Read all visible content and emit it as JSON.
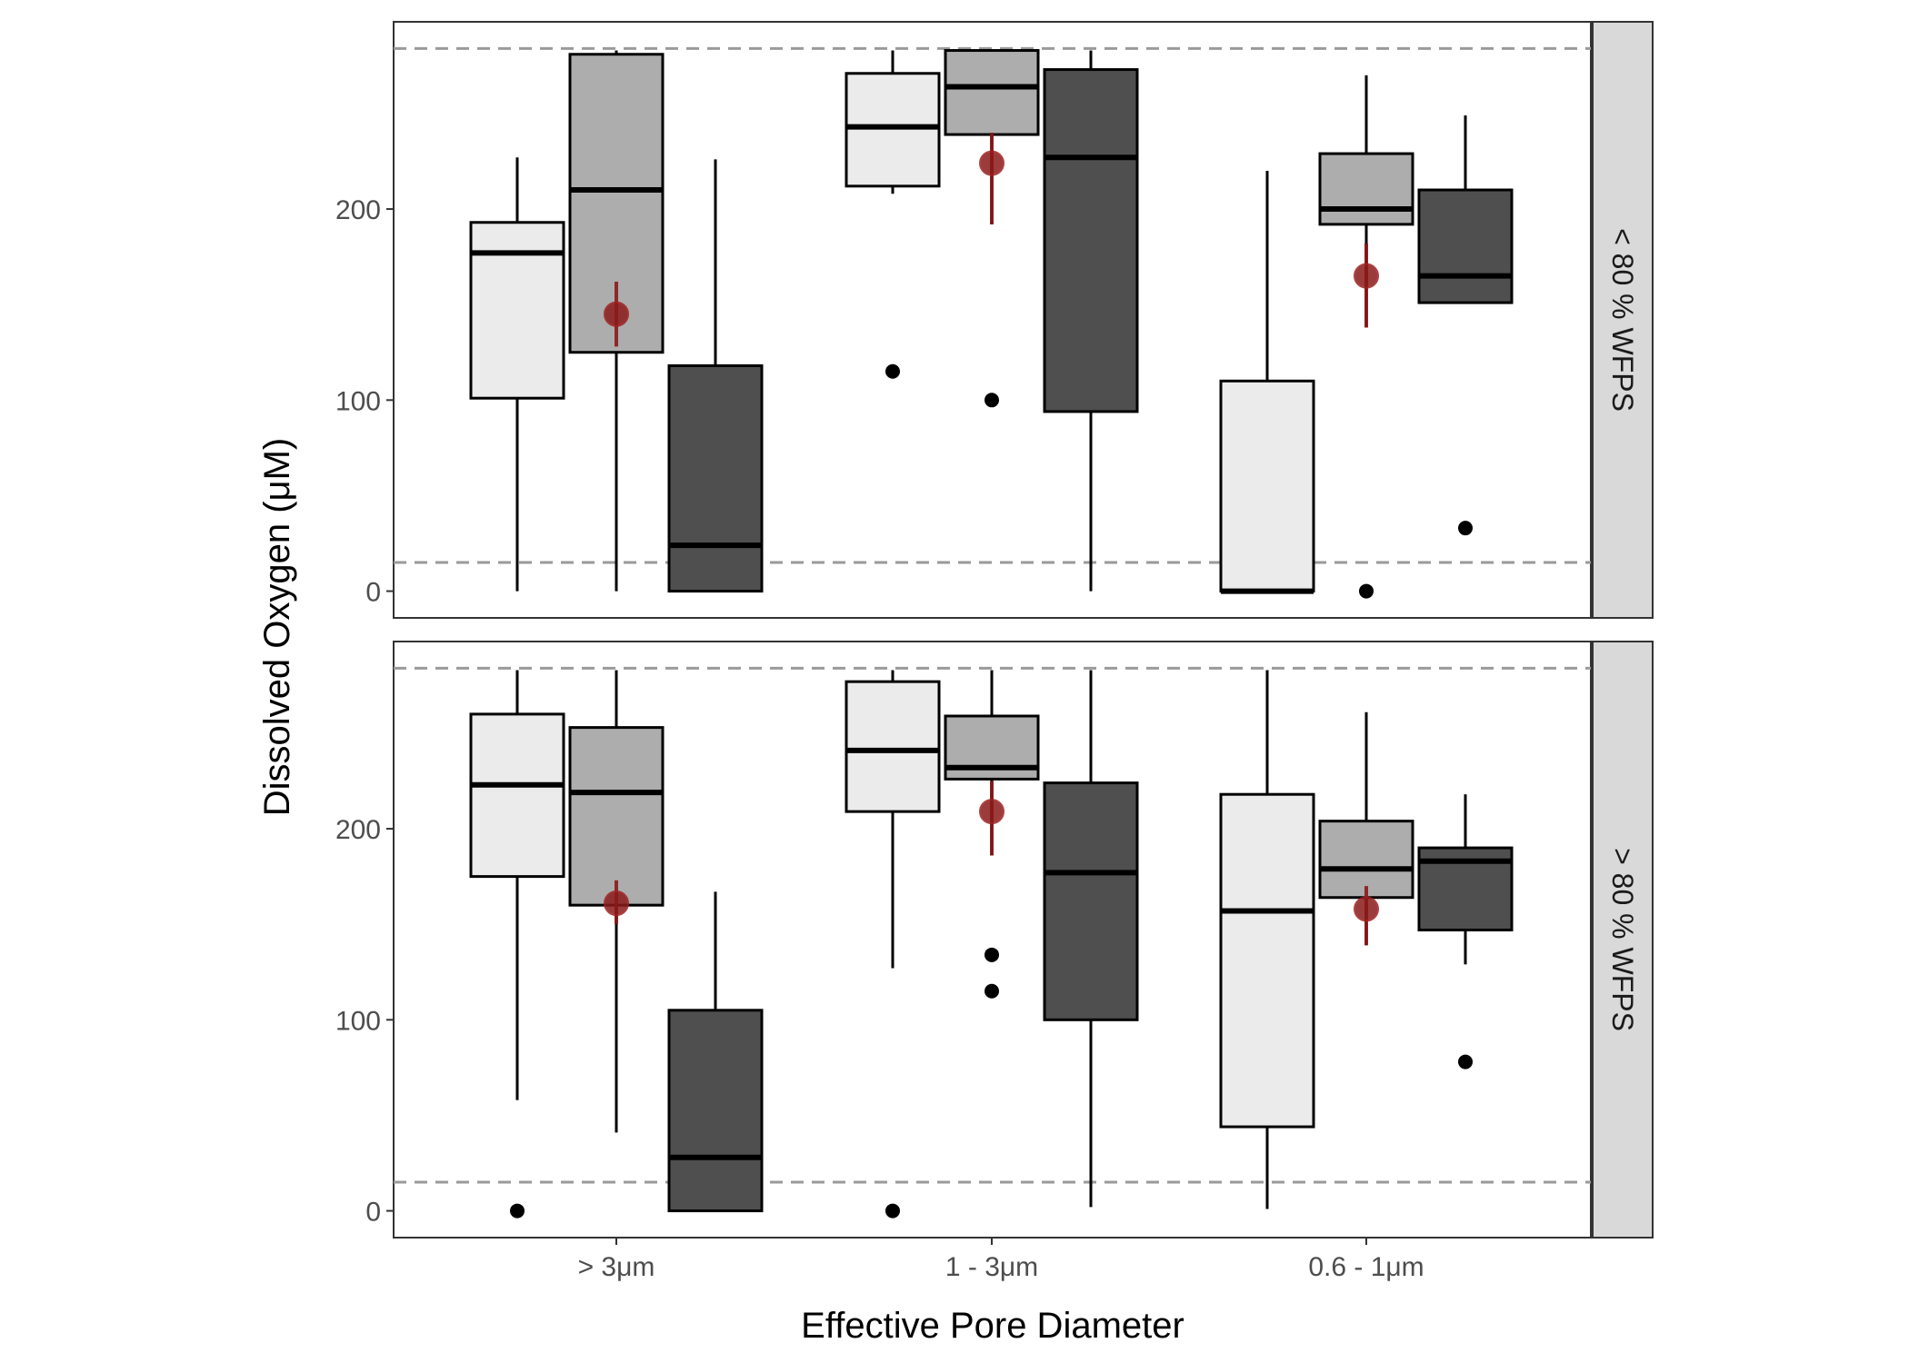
{
  "chart_data": {
    "type": "boxplot",
    "xlabel": "Effective Pore Diameter",
    "ylabel": "Dissolved Oxygen (μM)",
    "categories": [
      ">  3μm",
      "1 - 3μm",
      "0.6 - 1μm"
    ],
    "category_labels": [
      "> 3μm",
      "1 - 3μm",
      "0.6 - 1μm"
    ],
    "ylim": [
      -14,
      298
    ],
    "yticks": [
      0,
      100,
      200
    ],
    "reference_lines": [
      15,
      284
    ],
    "fill_colors": [
      "#ebebeb",
      "#adadad",
      "#4f4f4f"
    ],
    "mean_color": "#8b1a1a",
    "panels": [
      {
        "strip_label": "< 80 % WFPS",
        "groups": [
          {
            "category": "> 3μm",
            "boxes": [
              {
                "whisker_low": 0,
                "q1": 101,
                "median": 177,
                "q3": 193,
                "whisker_high": 227,
                "outliers": []
              },
              {
                "whisker_low": 0,
                "q1": 125,
                "median": 210,
                "q3": 281,
                "whisker_high": 283,
                "outliers": []
              },
              {
                "whisker_low": 0,
                "q1": 0,
                "median": 24,
                "q3": 118,
                "whisker_high": 226,
                "outliers": []
              }
            ],
            "mean": {
              "value": 145,
              "low": 128,
              "high": 162
            }
          },
          {
            "category": "1 - 3μm",
            "boxes": [
              {
                "whisker_low": 208,
                "q1": 212,
                "median": 243,
                "q3": 271,
                "whisker_high": 283,
                "outliers": [
                  115
                ]
              },
              {
                "whisker_low": 192,
                "q1": 239,
                "median": 264,
                "q3": 283,
                "whisker_high": 283,
                "outliers": [
                  100
                ]
              },
              {
                "whisker_low": 0,
                "q1": 94,
                "median": 227,
                "q3": 273,
                "whisker_high": 283,
                "outliers": []
              }
            ],
            "mean": {
              "value": 224,
              "low": 192,
              "high": 240
            }
          },
          {
            "category": "0.6 - 1μm",
            "boxes": [
              {
                "whisker_low": 0,
                "q1": 0,
                "median": 0,
                "q3": 110,
                "whisker_high": 220,
                "outliers": []
              },
              {
                "whisker_low": 138,
                "q1": 192,
                "median": 200,
                "q3": 229,
                "whisker_high": 270,
                "outliers": [
                  0
                ]
              },
              {
                "whisker_low": 151,
                "q1": 151,
                "median": 165,
                "q3": 210,
                "whisker_high": 249,
                "outliers": [
                  33
                ]
              }
            ],
            "mean": {
              "value": 165,
              "low": 138,
              "high": 182
            }
          }
        ]
      },
      {
        "strip_label": "> 80 % WFPS",
        "groups": [
          {
            "category": "> 3μm",
            "boxes": [
              {
                "whisker_low": 58,
                "q1": 175,
                "median": 223,
                "q3": 260,
                "whisker_high": 283,
                "outliers": [
                  0
                ]
              },
              {
                "whisker_low": 41,
                "q1": 160,
                "median": 219,
                "q3": 253,
                "whisker_high": 283,
                "outliers": []
              },
              {
                "whisker_low": 0,
                "q1": 0,
                "median": 28,
                "q3": 105,
                "whisker_high": 167,
                "outliers": []
              }
            ],
            "mean": {
              "value": 161,
              "low": 150,
              "high": 173
            }
          },
          {
            "category": "1 - 3μm",
            "boxes": [
              {
                "whisker_low": 127,
                "q1": 209,
                "median": 241,
                "q3": 277,
                "whisker_high": 283,
                "outliers": [
                  0
                ]
              },
              {
                "whisker_low": 186,
                "q1": 226,
                "median": 232,
                "q3": 259,
                "whisker_high": 283,
                "outliers": [
                  134,
                  115
                ]
              },
              {
                "whisker_low": 2,
                "q1": 100,
                "median": 177,
                "q3": 224,
                "whisker_high": 283,
                "outliers": []
              }
            ],
            "mean": {
              "value": 209,
              "low": 186,
              "high": 225
            }
          },
          {
            "category": "0.6 - 1μm",
            "boxes": [
              {
                "whisker_low": 1,
                "q1": 44,
                "median": 157,
                "q3": 218,
                "whisker_high": 283,
                "outliers": []
              },
              {
                "whisker_low": 139,
                "q1": 164,
                "median": 179,
                "q3": 204,
                "whisker_high": 261,
                "outliers": []
              },
              {
                "whisker_low": 129,
                "q1": 147,
                "median": 183,
                "q3": 190,
                "whisker_high": 218,
                "outliers": [
                  78
                ]
              }
            ],
            "mean": {
              "value": 158,
              "low": 139,
              "high": 170
            }
          }
        ]
      }
    ],
    "grid": false,
    "legend": "none"
  }
}
